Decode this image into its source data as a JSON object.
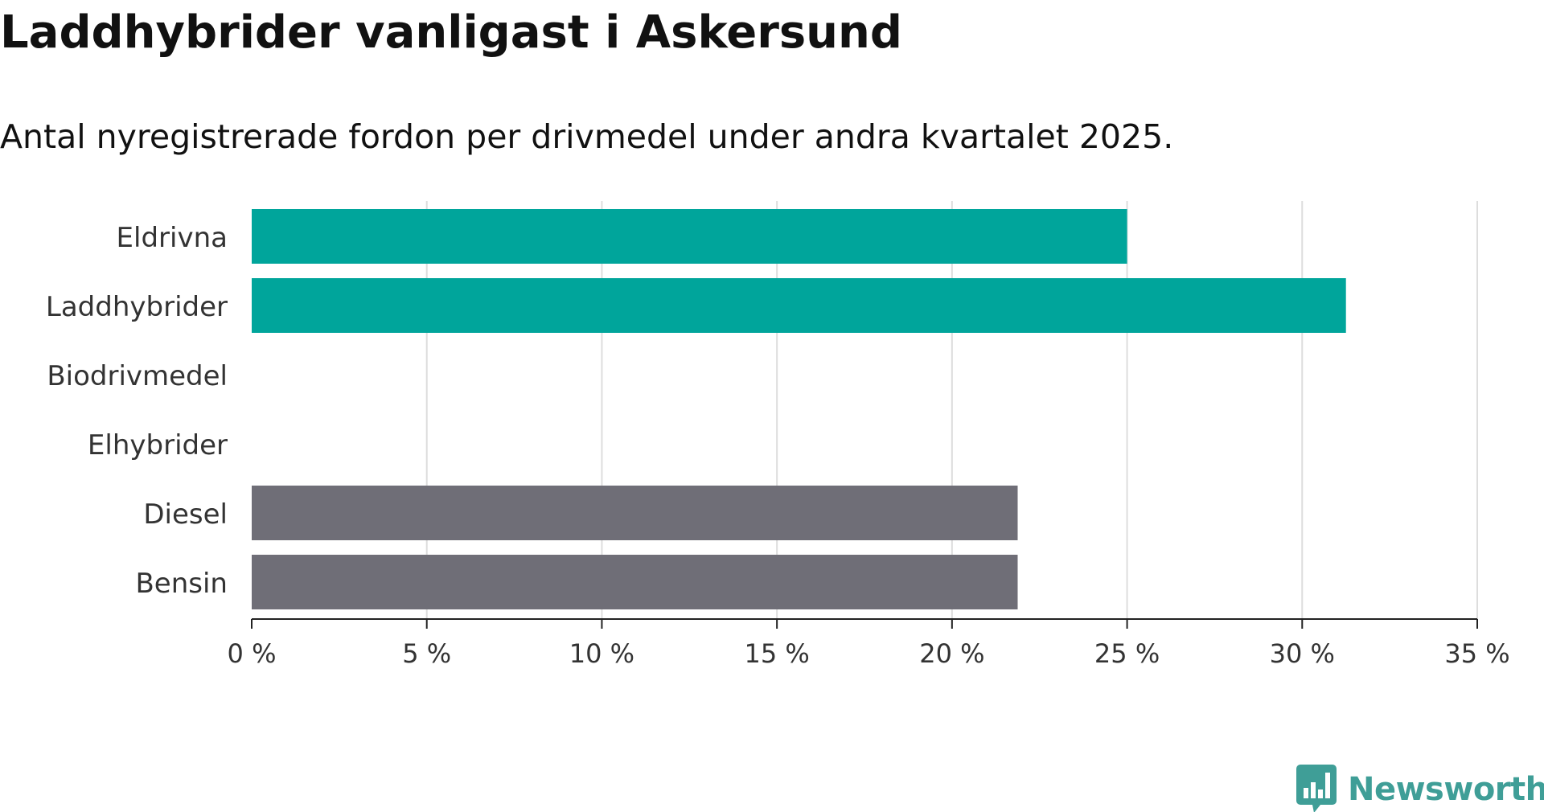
{
  "header": {
    "title": "Laddhybrider vanligast i Askersund",
    "subtitle": "Antal nyregistrerade fordon per drivmedel under andra kvartalet 2025."
  },
  "logo": {
    "text": "Newsworthy",
    "icon": "bar-chart-speech-bubble-icon",
    "color": "#3f9e97"
  },
  "chart_data": {
    "type": "bar",
    "orientation": "horizontal",
    "title": "Laddhybrider vanligast i Askersund",
    "subtitle": "Antal nyregistrerade fordon per drivmedel under andra kvartalet 2025.",
    "categories": [
      "Eldrivna",
      "Laddhybrider",
      "Biodrivmedel",
      "Elhybrider",
      "Diesel",
      "Bensin"
    ],
    "values": [
      25.0,
      31.25,
      0,
      0,
      21.875,
      21.875
    ],
    "colors": [
      "#00a59b",
      "#00a59b",
      "#00a59b",
      "#00a59b",
      "#6f6e77",
      "#6f6e77"
    ],
    "xlim": [
      0,
      35
    ],
    "xticks": [
      0,
      5,
      10,
      15,
      20,
      25,
      30,
      35
    ],
    "xtick_labels": [
      "0 %",
      "5 %",
      "10 %",
      "15 %",
      "20 %",
      "25 %",
      "30 %",
      "35 %"
    ],
    "unit": "%",
    "grid": "vertical",
    "legend": "none"
  }
}
